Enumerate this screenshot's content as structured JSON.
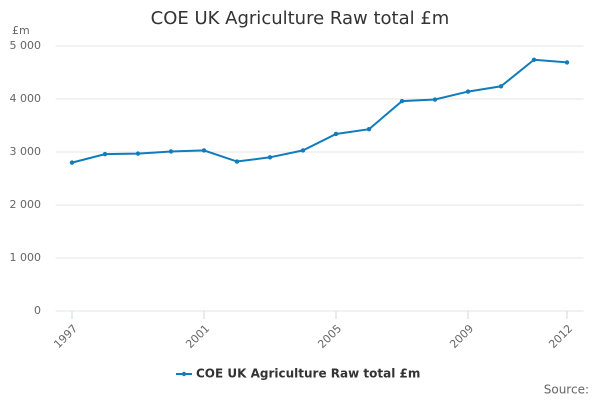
{
  "chart_data": {
    "type": "line",
    "title": "COE UK Agriculture Raw total £m",
    "y_label": "£m",
    "source": "Source:",
    "x": [
      1997,
      1998,
      1999,
      2000,
      2001,
      2002,
      2003,
      2004,
      2005,
      2006,
      2007,
      2008,
      2009,
      2010,
      2011,
      2012
    ],
    "series": [
      {
        "name": "COE UK Agriculture Raw total £m",
        "color": "#117cbd",
        "values": [
          2800,
          2960,
          2970,
          3010,
          3030,
          2820,
          2900,
          3030,
          3340,
          3430,
          3960,
          3990,
          4140,
          4240,
          4740,
          4690
        ]
      }
    ],
    "xlim": [
      1996.5,
      2012.5
    ],
    "xticks": [
      1997,
      2001,
      2005,
      2009,
      2012
    ],
    "ylim": [
      0,
      5000
    ],
    "yticks": [
      {
        "value": 0,
        "label": "0"
      },
      {
        "value": 1000,
        "label": "1 000"
      },
      {
        "value": 2000,
        "label": "2 000"
      },
      {
        "value": 3000,
        "label": "3 000"
      },
      {
        "value": 4000,
        "label": "4 000"
      },
      {
        "value": 5000,
        "label": "5 000"
      }
    ],
    "grid": true
  }
}
